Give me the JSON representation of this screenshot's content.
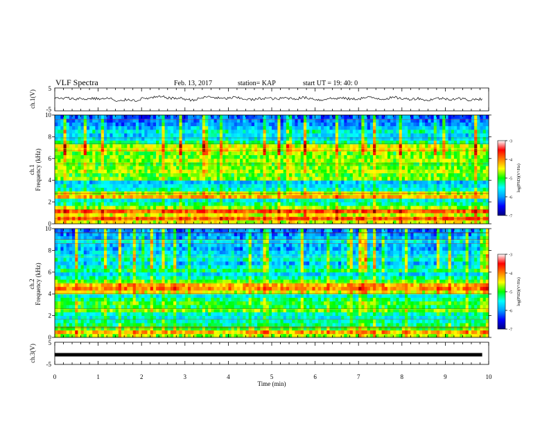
{
  "header": {
    "title": "VLF Spectra",
    "date": "Feb. 13, 2017",
    "station": "station= KAP",
    "start_ut": "start  UT  =   19: 40: 0"
  },
  "chart_data": [
    {
      "type": "line",
      "id": "ch1_voltage",
      "ylabel": "ch.1(V)",
      "ylim": [
        -5,
        5
      ],
      "yticks": [
        "5",
        "-5"
      ],
      "xlim": [
        0,
        10
      ],
      "series": [
        {
          "values": [
            0.5,
            0.3,
            0.6,
            0.2,
            0.4,
            0.1,
            0.5,
            0.3,
            0.2,
            0.6,
            -1.2,
            -0.4,
            0.1,
            -0.6,
            0.3,
            0.5,
            0.8,
            1.1,
            0.9,
            0.4,
            0.6,
            0.2,
            -0.3,
            0.1,
            0.8,
            1.2,
            0.7,
            0.3,
            0.5,
            0.9,
            0.4,
            0.2,
            -0.2,
            0.3,
            0.6,
            0.4,
            0.1,
            0.7,
            0.5,
            0.3,
            0.8,
            0.6,
            0.2,
            -0.4,
            0.5,
            0.3,
            0.6,
            0.4,
            0.1,
            0.3,
            0.7,
            0.9,
            0.5,
            0.2,
            0.6,
            0.8,
            0.4,
            0.1,
            0.3,
            0.5,
            -0.6,
            0.2,
            0.5,
            0.3,
            0.1,
            0.4,
            0.2,
            -0.3,
            0.1,
            0.2
          ]
        }
      ]
    },
    {
      "type": "heatmap",
      "id": "ch1_spectrogram",
      "ylabel_channel": "ch.1",
      "ylabel": "Frequency (kHz)",
      "ylim": [
        0,
        10
      ],
      "yticks": [
        "0",
        "2",
        "4",
        "6",
        "8",
        "10"
      ],
      "xlim": [
        0,
        10
      ],
      "colorbar": {
        "label": "log(PSD)(V²/Hz)",
        "range": [
          -7,
          -3
        ],
        "ticks": [
          "-3",
          "-4",
          "-5",
          "-6",
          "-7"
        ]
      },
      "band_profile": [
        -4.6,
        -4.0,
        -4.6,
        -3.9,
        -4.8,
        -5.3,
        -5.6,
        -4.3,
        -4.7,
        -5.5,
        -5.7,
        -5.9,
        -4.9,
        -5.0,
        -4.8,
        -4.9,
        -5.0,
        -4.8,
        -4.9,
        -5.0,
        -4.7,
        -4.8,
        -5.4,
        -5.8,
        -5.9,
        -5.7,
        -6.0,
        -6.2,
        -6.3,
        -6.4
      ]
    },
    {
      "type": "heatmap",
      "id": "ch2_spectrogram",
      "ylabel_channel": "ch.2",
      "ylabel": "Frequency (kHz)",
      "ylim": [
        0,
        10
      ],
      "yticks": [
        "0",
        "2",
        "4",
        "6",
        "8",
        "10"
      ],
      "xlim": [
        0,
        10
      ],
      "colorbar": {
        "label": "log(PSD)(V²/Hz)",
        "range": [
          -7,
          -3
        ],
        "ticks": [
          "-3",
          "-4",
          "-5",
          "-6",
          "-7"
        ]
      },
      "band_profile": [
        -4.8,
        -4.3,
        -5.0,
        -5.3,
        -5.5,
        -5.6,
        -5.5,
        -4.9,
        -5.2,
        -5.0,
        -5.3,
        -5.6,
        -4.6,
        -4.1,
        -4.3,
        -5.0,
        -5.4,
        -5.8,
        -5.2,
        -5.7,
        -6.0,
        -5.6,
        -5.8,
        -5.9,
        -6.1,
        -6.0,
        -5.8,
        -6.1,
        -6.2,
        -6.3
      ]
    },
    {
      "type": "line",
      "id": "ch3_voltage",
      "ylabel": "ch.3(V)",
      "ylim": [
        -5,
        5
      ],
      "yticks": [
        "5",
        "-5"
      ],
      "xlim": [
        0,
        10
      ],
      "series": [
        {
          "values": [
            0,
            0
          ]
        }
      ]
    }
  ],
  "xaxis": {
    "label": "Time (min)",
    "ticks": [
      "0",
      "1",
      "2",
      "3",
      "4",
      "5",
      "6",
      "7",
      "8",
      "9",
      "10"
    ]
  },
  "colors": {
    "colormap": [
      "#000080",
      "#0000ff",
      "#00a0ff",
      "#00ffff",
      "#00ff00",
      "#ffff00",
      "#ff8000",
      "#ff0000",
      "#800000"
    ]
  }
}
